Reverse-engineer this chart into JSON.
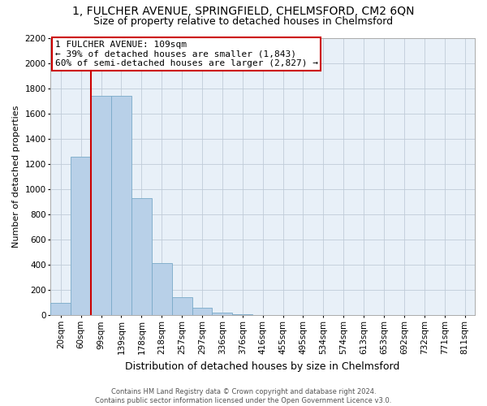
{
  "title": "1, FULCHER AVENUE, SPRINGFIELD, CHELMSFORD, CM2 6QN",
  "subtitle": "Size of property relative to detached houses in Chelmsford",
  "xlabel": "Distribution of detached houses by size in Chelmsford",
  "ylabel": "Number of detached properties",
  "categories": [
    "20sqm",
    "60sqm",
    "99sqm",
    "139sqm",
    "178sqm",
    "218sqm",
    "257sqm",
    "297sqm",
    "336sqm",
    "376sqm",
    "416sqm",
    "455sqm",
    "495sqm",
    "534sqm",
    "574sqm",
    "613sqm",
    "653sqm",
    "692sqm",
    "732sqm",
    "771sqm",
    "811sqm"
  ],
  "values": [
    100,
    1260,
    1740,
    1740,
    930,
    415,
    145,
    60,
    25,
    10,
    0,
    0,
    0,
    0,
    0,
    0,
    0,
    0,
    0,
    0,
    0
  ],
  "bar_color": "#b8d0e8",
  "bar_edge_color": "#7aaac8",
  "property_line_color": "#cc0000",
  "property_line_bin": 2,
  "ylim": [
    0,
    2200
  ],
  "yticks": [
    0,
    200,
    400,
    600,
    800,
    1000,
    1200,
    1400,
    1600,
    1800,
    2000,
    2200
  ],
  "annotation_text": "1 FULCHER AVENUE: 109sqm\n← 39% of detached houses are smaller (1,843)\n60% of semi-detached houses are larger (2,827) →",
  "annotation_box_color": "#cc0000",
  "footer_line1": "Contains HM Land Registry data © Crown copyright and database right 2024.",
  "footer_line2": "Contains public sector information licensed under the Open Government Licence v3.0.",
  "background_color": "#ffffff",
  "plot_bg_color": "#e8f0f8",
  "grid_color": "#c0ccd8",
  "title_fontsize": 10,
  "subtitle_fontsize": 9,
  "xlabel_fontsize": 9,
  "ylabel_fontsize": 8,
  "tick_fontsize": 7.5,
  "annotation_fontsize": 8
}
